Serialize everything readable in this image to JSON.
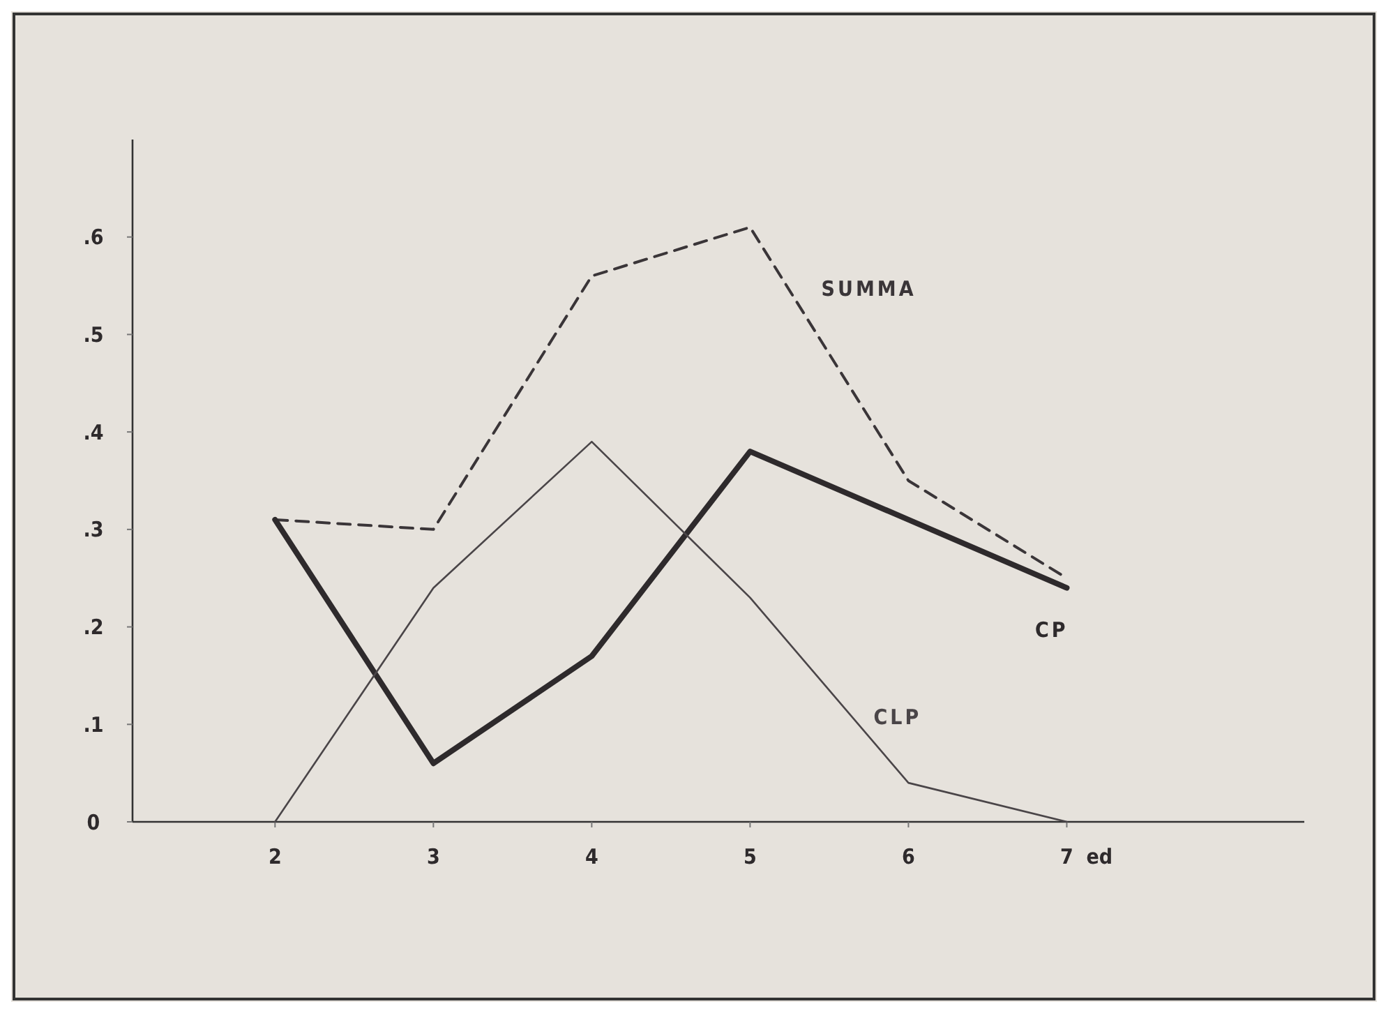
{
  "chart_data": {
    "type": "line",
    "xlabel": "ed",
    "x": [
      2,
      3,
      4,
      5,
      6,
      7
    ],
    "xlim": [
      1.1,
      8.5
    ],
    "xticks": [
      2,
      3,
      4,
      5,
      6,
      7
    ],
    "ylim": [
      0,
      0.7
    ],
    "yticks": [
      0,
      {
        "value": 0.1,
        "label": ".1"
      },
      {
        "value": 0.2,
        "label": ".2"
      },
      {
        "value": 0.3,
        "label": ".3"
      },
      {
        "value": 0.4,
        "label": ".4"
      },
      {
        "value": 0.5,
        "label": ".5"
      },
      {
        "value": 0.6,
        "label": ".6"
      }
    ],
    "grid": false,
    "marker": "none",
    "series": [
      {
        "name": "SUMMA",
        "color": "#3a3538",
        "line_style": "dashed",
        "values": [
          0.31,
          0.3,
          0.56,
          0.61,
          0.35,
          0.25
        ]
      },
      {
        "name": "CP",
        "color": "#2e2a2c",
        "line_style": "solid",
        "values": [
          0.31,
          0.06,
          0.17,
          0.38,
          0.31,
          0.24
        ]
      },
      {
        "name": "CLP",
        "color": "#4a4548",
        "line_style": "solid",
        "values": [
          0,
          0.24,
          0.39,
          0.23,
          0.04,
          0
        ]
      }
    ]
  }
}
